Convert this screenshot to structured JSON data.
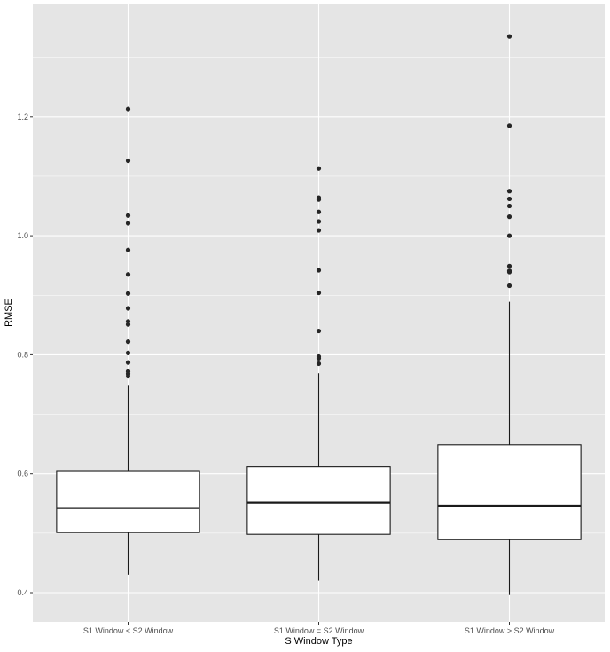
{
  "chart_data": {
    "type": "boxplot",
    "xlabel": "S Window Type",
    "ylabel": "RMSE",
    "ylim": [
      0.37,
      1.355
    ],
    "yticks": [
      0.4,
      0.6,
      0.8,
      1.0,
      1.2
    ],
    "ytick_labels": [
      "0.4",
      "0.6",
      "0.8",
      "1.0",
      "1.2"
    ],
    "grid": true,
    "background": "#e5e5e5",
    "grid_color": "#ffffff",
    "box_fill": "#ffffff",
    "line_color": "#1a1a1a",
    "outlier_color": "#262626",
    "categories": [
      "S1.Window < S2.Window",
      "S1.Window = S2.Window",
      "S1.Window > S2.Window"
    ],
    "boxes": [
      {
        "category": "S1.Window < S2.Window",
        "whisker_low": 0.43,
        "q1": 0.501,
        "median": 0.542,
        "q3": 0.604,
        "whisker_high": 0.748,
        "outliers": [
          1.213,
          1.126,
          1.034,
          1.021,
          0.976,
          0.935,
          0.903,
          0.878,
          0.856,
          0.851,
          0.822,
          0.803,
          0.787,
          0.772,
          0.768,
          0.764
        ]
      },
      {
        "category": "S1.Window = S2.Window",
        "whisker_low": 0.42,
        "q1": 0.498,
        "median": 0.551,
        "q3": 0.612,
        "whisker_high": 0.769,
        "outliers": [
          1.113,
          1.064,
          1.061,
          1.04,
          1.024,
          1.009,
          0.942,
          0.904,
          0.84,
          0.797,
          0.794,
          0.785
        ]
      },
      {
        "category": "S1.Window > S2.Window",
        "whisker_low": 0.396,
        "q1": 0.489,
        "median": 0.546,
        "q3": 0.649,
        "whisker_high": 0.889,
        "outliers": [
          1.335,
          1.185,
          1.075,
          1.062,
          1.05,
          1.032,
          1.0,
          0.949,
          0.941,
          0.939,
          0.916
        ]
      }
    ]
  }
}
